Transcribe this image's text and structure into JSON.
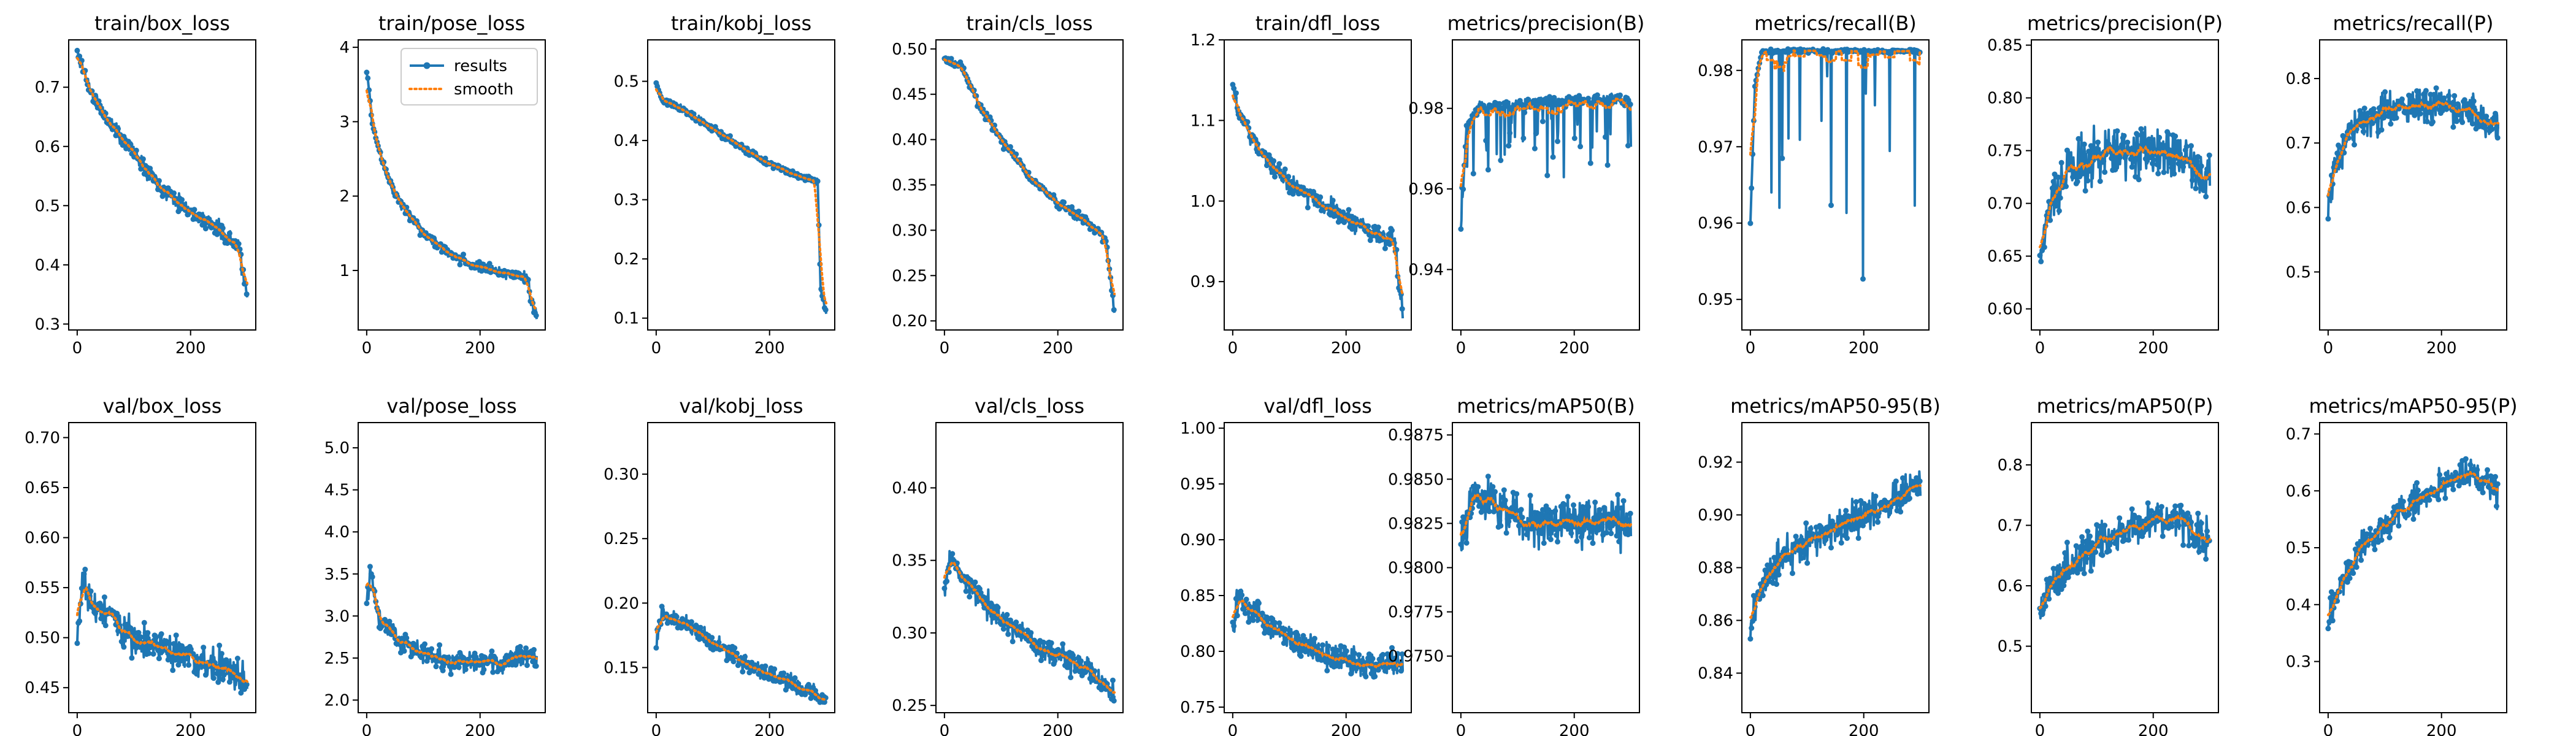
{
  "colors": {
    "results": "#1f77b4",
    "smooth": "#ff7f0e",
    "frame": "#000000"
  },
  "legend": {
    "results": "results",
    "smooth": "smooth",
    "placement": "upper-right",
    "panel": 1
  },
  "chart_data": [
    {
      "type": "line",
      "title": "train/box_loss",
      "x_range": [
        0,
        300
      ],
      "ylim": [
        0.29,
        0.78
      ],
      "yticks": [
        0.3,
        0.4,
        0.5,
        0.6,
        0.7
      ],
      "ytick_labels": [
        "0.3",
        "0.4",
        "0.5",
        "0.6",
        "0.7"
      ],
      "xticks": [
        0,
        200
      ],
      "xtick_labels": [
        "0",
        "200"
      ],
      "trend": [
        [
          0,
          0.76
        ],
        [
          25,
          0.69
        ],
        [
          50,
          0.65
        ],
        [
          100,
          0.59
        ],
        [
          150,
          0.53
        ],
        [
          200,
          0.49
        ],
        [
          250,
          0.46
        ],
        [
          285,
          0.43
        ],
        [
          290,
          0.4
        ],
        [
          300,
          0.34
        ]
      ],
      "noise": 0.02,
      "seed": 11
    },
    {
      "type": "line",
      "title": "train/pose_loss",
      "x_range": [
        0,
        300
      ],
      "ylim": [
        0.2,
        4.1
      ],
      "yticks": [
        1,
        2,
        3,
        4
      ],
      "ytick_labels": [
        "1",
        "2",
        "3",
        "4"
      ],
      "xticks": [
        0,
        200
      ],
      "xtick_labels": [
        "0",
        "200"
      ],
      "trend": [
        [
          0,
          3.7
        ],
        [
          10,
          3.0
        ],
        [
          30,
          2.4
        ],
        [
          60,
          1.9
        ],
        [
          100,
          1.5
        ],
        [
          150,
          1.2
        ],
        [
          200,
          1.05
        ],
        [
          250,
          0.95
        ],
        [
          285,
          0.9
        ],
        [
          290,
          0.55
        ],
        [
          300,
          0.42
        ]
      ],
      "noise": 0.1,
      "seed": 12
    },
    {
      "type": "line",
      "title": "train/kobj_loss",
      "x_range": [
        0,
        300
      ],
      "ylim": [
        0.08,
        0.57
      ],
      "yticks": [
        0.1,
        0.2,
        0.3,
        0.4,
        0.5
      ],
      "ytick_labels": [
        "0.1",
        "0.2",
        "0.3",
        "0.4",
        "0.5"
      ],
      "xticks": [
        0,
        200
      ],
      "xtick_labels": [
        "0",
        "200"
      ],
      "trend": [
        [
          0,
          0.5
        ],
        [
          10,
          0.47
        ],
        [
          50,
          0.45
        ],
        [
          100,
          0.42
        ],
        [
          150,
          0.39
        ],
        [
          200,
          0.36
        ],
        [
          250,
          0.34
        ],
        [
          285,
          0.33
        ],
        [
          290,
          0.15
        ],
        [
          300,
          0.11
        ]
      ],
      "noise": 0.008,
      "seed": 13
    },
    {
      "type": "line",
      "title": "train/cls_loss",
      "x_range": [
        0,
        300
      ],
      "ylim": [
        0.19,
        0.51
      ],
      "yticks": [
        0.2,
        0.25,
        0.3,
        0.35,
        0.4,
        0.45,
        0.5
      ],
      "ytick_labels": [
        "0.20",
        "0.25",
        "0.30",
        "0.35",
        "0.40",
        "0.45",
        "0.50"
      ],
      "xticks": [
        0,
        200
      ],
      "xtick_labels": [
        "0",
        "200"
      ],
      "trend": [
        [
          0,
          0.49
        ],
        [
          30,
          0.48
        ],
        [
          60,
          0.44
        ],
        [
          100,
          0.4
        ],
        [
          150,
          0.36
        ],
        [
          200,
          0.33
        ],
        [
          250,
          0.31
        ],
        [
          285,
          0.29
        ],
        [
          290,
          0.26
        ],
        [
          300,
          0.21
        ]
      ],
      "noise": 0.008,
      "seed": 14
    },
    {
      "type": "line",
      "title": "train/dfl_loss",
      "x_range": [
        0,
        300
      ],
      "ylim": [
        0.84,
        1.2
      ],
      "yticks": [
        0.9,
        1.0,
        1.1,
        1.2
      ],
      "ytick_labels": [
        "0.9",
        "1.0",
        "1.1",
        "1.2"
      ],
      "xticks": [
        0,
        200
      ],
      "xtick_labels": [
        "0",
        "200"
      ],
      "trend": [
        [
          0,
          1.15
        ],
        [
          10,
          1.11
        ],
        [
          50,
          1.06
        ],
        [
          100,
          1.02
        ],
        [
          150,
          1.0
        ],
        [
          200,
          0.98
        ],
        [
          250,
          0.96
        ],
        [
          285,
          0.95
        ],
        [
          290,
          0.92
        ],
        [
          300,
          0.86
        ]
      ],
      "noise": 0.018,
      "seed": 15
    },
    {
      "type": "line",
      "title": "metrics/precision(B)",
      "x_range": [
        0,
        300
      ],
      "ylim": [
        0.925,
        0.997
      ],
      "yticks": [
        0.94,
        0.96,
        0.98
      ],
      "ytick_labels": [
        "0.94",
        "0.96",
        "0.98"
      ],
      "xticks": [
        0,
        200
      ],
      "xtick_labels": [
        "0",
        "200"
      ],
      "trend": [
        [
          0,
          0.95
        ],
        [
          10,
          0.975
        ],
        [
          30,
          0.98
        ],
        [
          100,
          0.981
        ],
        [
          200,
          0.982
        ],
        [
          300,
          0.982
        ]
      ],
      "noise": 0.002,
      "dips": 0.12,
      "dip_min": 0.962,
      "seed": 16
    },
    {
      "type": "line",
      "title": "metrics/recall(B)",
      "x_range": [
        0,
        300
      ],
      "ylim": [
        0.946,
        0.984
      ],
      "yticks": [
        0.95,
        0.96,
        0.97,
        0.98
      ],
      "ytick_labels": [
        "0.95",
        "0.96",
        "0.97",
        "0.98"
      ],
      "xticks": [
        0,
        200
      ],
      "xtick_labels": [
        "0",
        "200"
      ],
      "trend": [
        [
          0,
          0.96
        ],
        [
          8,
          0.978
        ],
        [
          20,
          0.9825
        ],
        [
          300,
          0.9825
        ]
      ],
      "noise": 0.0004,
      "dips": 0.04,
      "dip_min": 0.95,
      "seed": 17
    },
    {
      "type": "line",
      "title": "metrics/precision(P)",
      "x_range": [
        0,
        300
      ],
      "ylim": [
        0.58,
        0.855
      ],
      "yticks": [
        0.6,
        0.65,
        0.7,
        0.75,
        0.8,
        0.85
      ],
      "ytick_labels": [
        "0.60",
        "0.65",
        "0.70",
        "0.75",
        "0.80",
        "0.85"
      ],
      "xticks": [
        0,
        200
      ],
      "xtick_labels": [
        "0",
        "200"
      ],
      "trend": [
        [
          0,
          0.65
        ],
        [
          20,
          0.7
        ],
        [
          50,
          0.73
        ],
        [
          100,
          0.745
        ],
        [
          150,
          0.75
        ],
        [
          200,
          0.75
        ],
        [
          250,
          0.74
        ],
        [
          300,
          0.72
        ]
      ],
      "noise": 0.035,
      "seed": 18
    },
    {
      "type": "line",
      "title": "metrics/recall(P)",
      "x_range": [
        0,
        300
      ],
      "ylim": [
        0.41,
        0.86
      ],
      "yticks": [
        0.5,
        0.6,
        0.7,
        0.8
      ],
      "ytick_labels": [
        "0.5",
        "0.6",
        "0.7",
        "0.8"
      ],
      "xticks": [
        0,
        200
      ],
      "xtick_labels": [
        "0",
        "200"
      ],
      "trend": [
        [
          0,
          0.6
        ],
        [
          10,
          0.66
        ],
        [
          40,
          0.72
        ],
        [
          100,
          0.75
        ],
        [
          200,
          0.76
        ],
        [
          250,
          0.75
        ],
        [
          300,
          0.72
        ]
      ],
      "noise": 0.04,
      "seed": 19
    },
    {
      "type": "line",
      "title": "val/box_loss",
      "x_range": [
        0,
        300
      ],
      "ylim": [
        0.425,
        0.715
      ],
      "yticks": [
        0.45,
        0.5,
        0.55,
        0.6,
        0.65,
        0.7
      ],
      "ytick_labels": [
        "0.45",
        "0.50",
        "0.55",
        "0.60",
        "0.65",
        "0.70"
      ],
      "xticks": [
        0,
        200
      ],
      "xtick_labels": [
        "0",
        "200"
      ],
      "trend": [
        [
          0,
          0.5
        ],
        [
          10,
          0.56
        ],
        [
          30,
          0.53
        ],
        [
          60,
          0.52
        ],
        [
          100,
          0.5
        ],
        [
          150,
          0.49
        ],
        [
          200,
          0.48
        ],
        [
          250,
          0.47
        ],
        [
          300,
          0.455
        ]
      ],
      "noise": 0.025,
      "seed": 21
    },
    {
      "type": "line",
      "title": "val/pose_loss",
      "x_range": [
        0,
        300
      ],
      "ylim": [
        1.85,
        5.3
      ],
      "yticks": [
        2.0,
        2.5,
        3.0,
        3.5,
        4.0,
        4.5,
        5.0
      ],
      "ytick_labels": [
        "2.0",
        "2.5",
        "3.0",
        "3.5",
        "4.0",
        "4.5",
        "5.0"
      ],
      "xticks": [
        0,
        200
      ],
      "xtick_labels": [
        "0",
        "200"
      ],
      "trend": [
        [
          0,
          3.2
        ],
        [
          8,
          3.6
        ],
        [
          20,
          3.0
        ],
        [
          60,
          2.7
        ],
        [
          100,
          2.55
        ],
        [
          150,
          2.45
        ],
        [
          200,
          2.45
        ],
        [
          250,
          2.45
        ],
        [
          300,
          2.55
        ]
      ],
      "noise": 0.18,
      "seed": 22
    },
    {
      "type": "line",
      "title": "val/kobj_loss",
      "x_range": [
        0,
        300
      ],
      "ylim": [
        0.115,
        0.34
      ],
      "yticks": [
        0.15,
        0.2,
        0.25,
        0.3
      ],
      "ytick_labels": [
        "0.15",
        "0.20",
        "0.25",
        "0.30"
      ],
      "xticks": [
        0,
        200
      ],
      "xtick_labels": [
        "0",
        "200"
      ],
      "trend": [
        [
          0,
          0.17
        ],
        [
          10,
          0.19
        ],
        [
          50,
          0.185
        ],
        [
          100,
          0.17
        ],
        [
          150,
          0.155
        ],
        [
          200,
          0.145
        ],
        [
          250,
          0.135
        ],
        [
          300,
          0.125
        ]
      ],
      "noise": 0.01,
      "seed": 23
    },
    {
      "type": "line",
      "title": "val/cls_loss",
      "x_range": [
        0,
        300
      ],
      "ylim": [
        0.245,
        0.445
      ],
      "yticks": [
        0.25,
        0.3,
        0.35,
        0.4
      ],
      "ytick_labels": [
        "0.25",
        "0.30",
        "0.35",
        "0.40"
      ],
      "xticks": [
        0,
        200
      ],
      "xtick_labels": [
        "0",
        "200"
      ],
      "trend": [
        [
          0,
          0.33
        ],
        [
          10,
          0.35
        ],
        [
          50,
          0.33
        ],
        [
          100,
          0.31
        ],
        [
          150,
          0.295
        ],
        [
          200,
          0.285
        ],
        [
          250,
          0.275
        ],
        [
          300,
          0.26
        ]
      ],
      "noise": 0.012,
      "seed": 24
    },
    {
      "type": "line",
      "title": "val/dfl_loss",
      "x_range": [
        0,
        300
      ],
      "ylim": [
        0.745,
        1.005
      ],
      "yticks": [
        0.75,
        0.8,
        0.85,
        0.9,
        0.95,
        1.0
      ],
      "ytick_labels": [
        "0.75",
        "0.80",
        "0.85",
        "0.90",
        "0.95",
        "1.00"
      ],
      "xticks": [
        0,
        200
      ],
      "xtick_labels": [
        "0",
        "200"
      ],
      "trend": [
        [
          0,
          0.82
        ],
        [
          10,
          0.85
        ],
        [
          50,
          0.83
        ],
        [
          100,
          0.81
        ],
        [
          150,
          0.8
        ],
        [
          200,
          0.79
        ],
        [
          250,
          0.785
        ],
        [
          300,
          0.79
        ]
      ],
      "noise": 0.018,
      "seed": 25
    },
    {
      "type": "line",
      "title": "metrics/mAP50(B)",
      "x_range": [
        0,
        300
      ],
      "ylim": [
        0.9718,
        0.9882
      ],
      "yticks": [
        0.975,
        0.9775,
        0.98,
        0.9825,
        0.985,
        0.9875
      ],
      "ytick_labels": [
        "0.9750",
        "0.9775",
        "0.9800",
        "0.9825",
        "0.9850",
        "0.9875"
      ],
      "xticks": [
        0,
        200
      ],
      "xtick_labels": [
        "0",
        "200"
      ],
      "trend": [
        [
          0,
          0.981
        ],
        [
          20,
          0.984
        ],
        [
          60,
          0.9835
        ],
        [
          120,
          0.9825
        ],
        [
          200,
          0.9825
        ],
        [
          300,
          0.9825
        ]
      ],
      "noise": 0.0018,
      "seed": 26
    },
    {
      "type": "line",
      "title": "metrics/mAP50-95(B)",
      "x_range": [
        0,
        300
      ],
      "ylim": [
        0.825,
        0.935
      ],
      "yticks": [
        0.84,
        0.86,
        0.88,
        0.9,
        0.92
      ],
      "ytick_labels": [
        "0.84",
        "0.86",
        "0.88",
        "0.90",
        "0.92"
      ],
      "xticks": [
        0,
        200
      ],
      "xtick_labels": [
        "0",
        "200"
      ],
      "trend": [
        [
          0,
          0.86
        ],
        [
          20,
          0.875
        ],
        [
          60,
          0.885
        ],
        [
          100,
          0.89
        ],
        [
          150,
          0.895
        ],
        [
          200,
          0.9
        ],
        [
          250,
          0.905
        ],
        [
          300,
          0.91
        ]
      ],
      "noise": 0.01,
      "seed": 27
    },
    {
      "type": "line",
      "title": "metrics/mAP50(P)",
      "x_range": [
        0,
        300
      ],
      "ylim": [
        0.39,
        0.87
      ],
      "yticks": [
        0.5,
        0.6,
        0.7,
        0.8
      ],
      "ytick_labels": [
        "0.5",
        "0.6",
        "0.7",
        "0.8"
      ],
      "xticks": [
        0,
        200
      ],
      "xtick_labels": [
        "0",
        "200"
      ],
      "trend": [
        [
          0,
          0.55
        ],
        [
          20,
          0.6
        ],
        [
          60,
          0.64
        ],
        [
          100,
          0.67
        ],
        [
          150,
          0.69
        ],
        [
          200,
          0.71
        ],
        [
          250,
          0.71
        ],
        [
          300,
          0.67
        ]
      ],
      "noise": 0.05,
      "seed": 28
    },
    {
      "type": "line",
      "title": "metrics/mAP50-95(P)",
      "x_range": [
        0,
        300
      ],
      "ylim": [
        0.21,
        0.72
      ],
      "yticks": [
        0.3,
        0.4,
        0.5,
        0.6,
        0.7
      ],
      "ytick_labels": [
        "0.3",
        "0.4",
        "0.5",
        "0.6",
        "0.7"
      ],
      "xticks": [
        0,
        200
      ],
      "xtick_labels": [
        "0",
        "200"
      ],
      "trend": [
        [
          0,
          0.38
        ],
        [
          20,
          0.43
        ],
        [
          60,
          0.5
        ],
        [
          100,
          0.54
        ],
        [
          150,
          0.58
        ],
        [
          200,
          0.61
        ],
        [
          250,
          0.63
        ],
        [
          300,
          0.6
        ]
      ],
      "noise": 0.04,
      "seed": 29
    }
  ]
}
